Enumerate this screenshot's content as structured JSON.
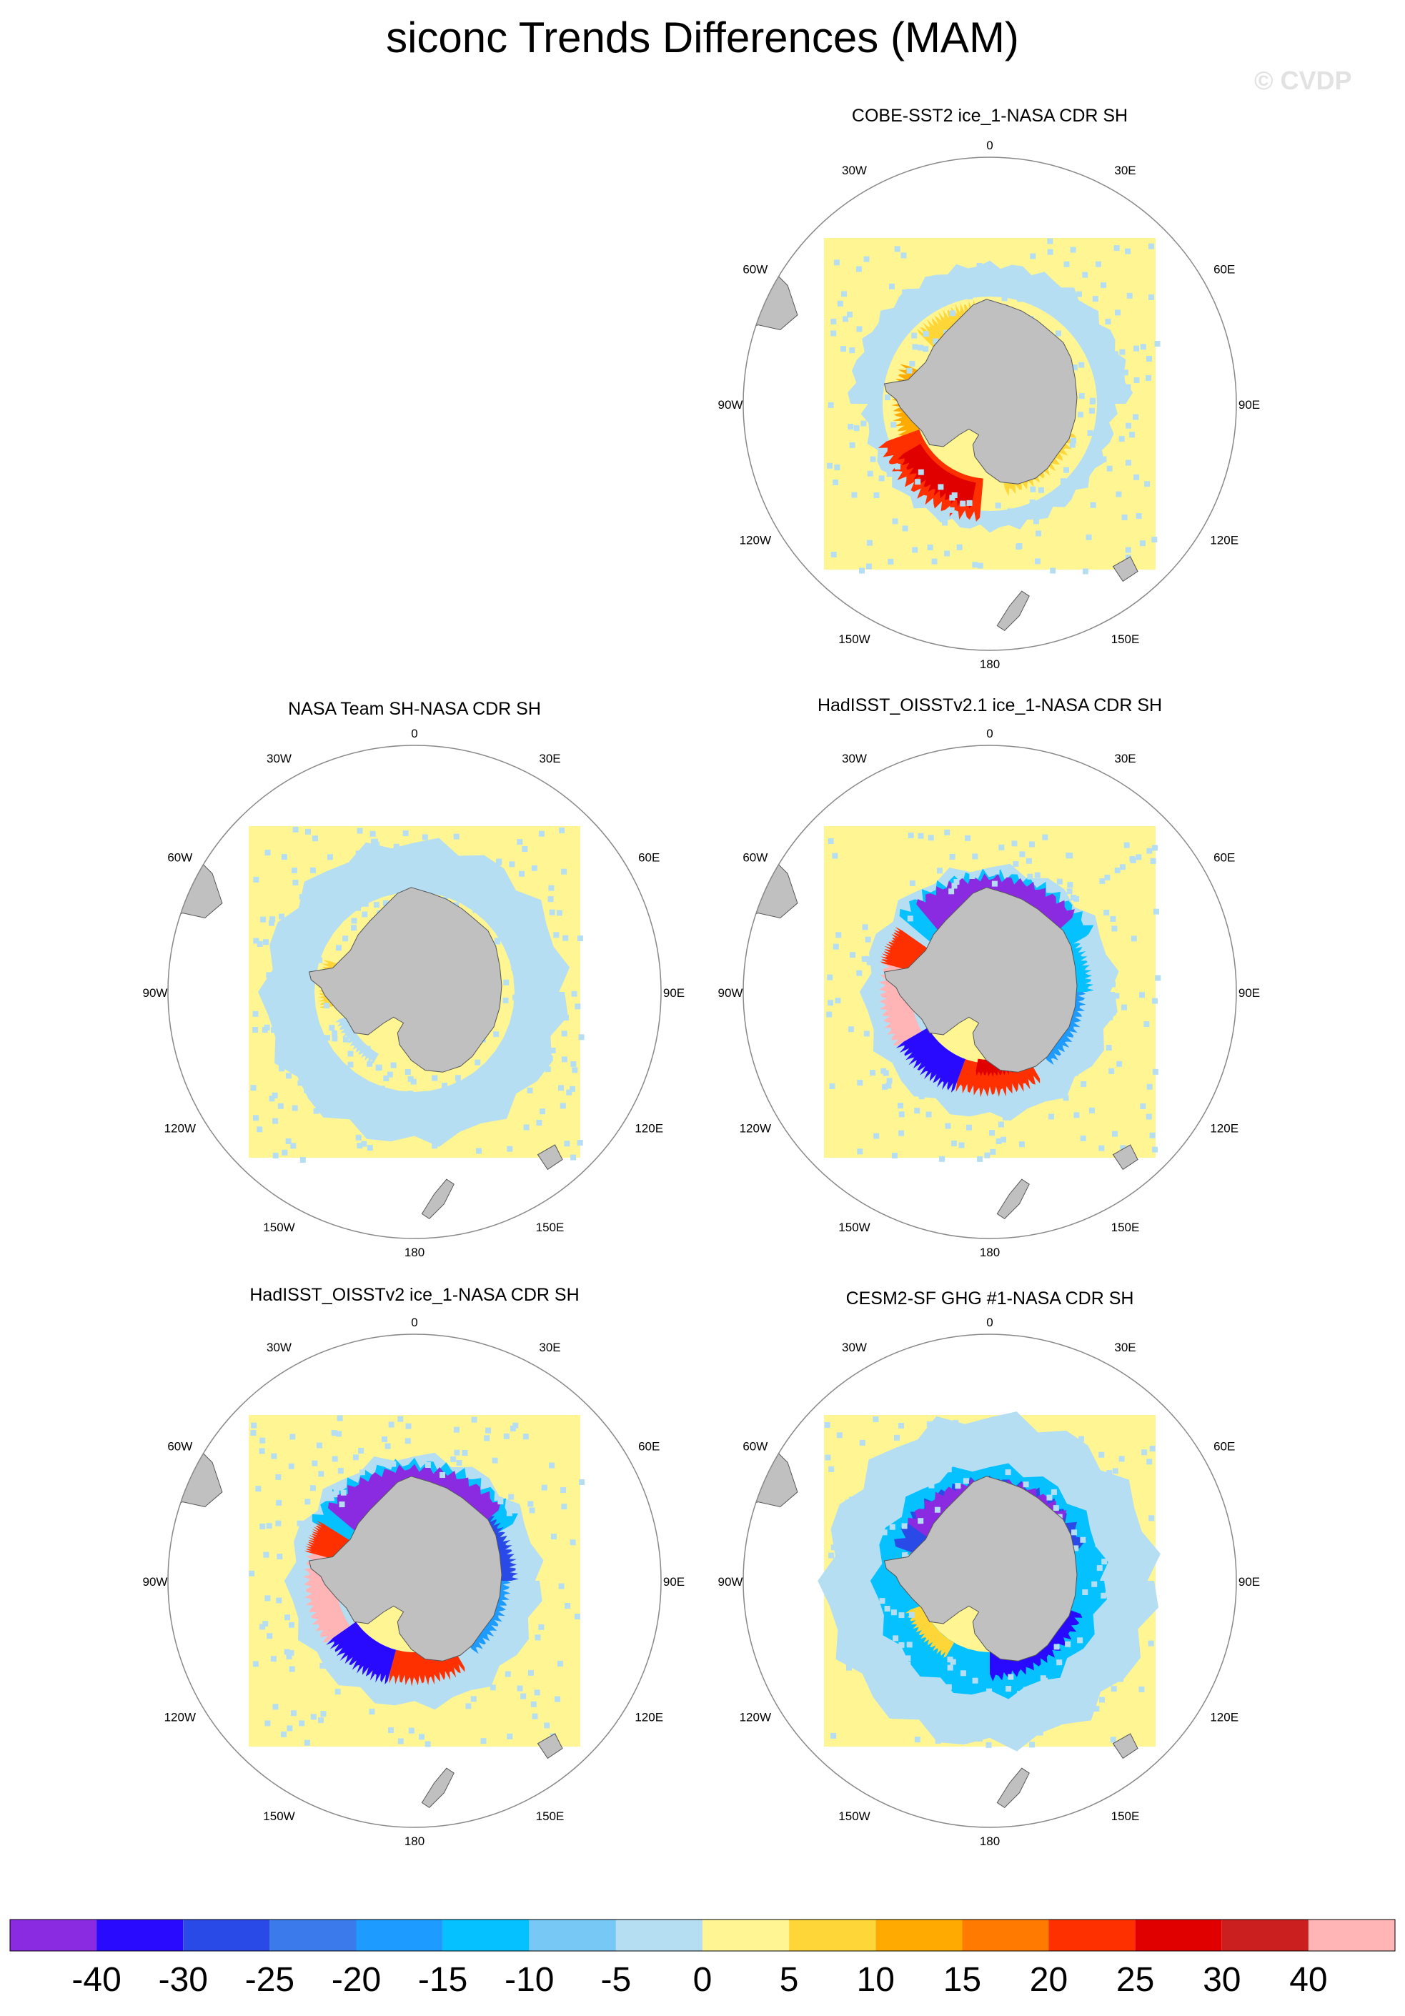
{
  "title": "siconc Trends Differences (MAM)",
  "watermark": "© CVDP",
  "lon_labels": [
    "0",
    "30E",
    "60E",
    "90E",
    "120E",
    "150E",
    "180",
    "150W",
    "120W",
    "90W",
    "60W",
    "30W"
  ],
  "panels": [
    {
      "title": "COBE-SST2 ice_1-NASA CDR SH",
      "pattern": "cobe"
    },
    {
      "title": "NASA Team SH-NASA CDR SH",
      "pattern": "nasateam"
    },
    {
      "title": "HadISST_OISSTv2.1 ice_1-NASA CDR SH",
      "pattern": "hadisst21"
    },
    {
      "title": "HadISST_OISSTv2 ice_1-NASA CDR SH",
      "pattern": "hadisst2"
    },
    {
      "title": "CESM2-SF GHG #1-NASA CDR SH",
      "pattern": "cesm2"
    }
  ],
  "colorbar": {
    "labels": [
      "-40",
      "-30",
      "-25",
      "-20",
      "-15",
      "-10",
      "-5",
      "0",
      "5",
      "10",
      "15",
      "20",
      "25",
      "30",
      "40"
    ],
    "colors": [
      "#8a2be2",
      "#2a0aff",
      "#2a4ae8",
      "#3a7aea",
      "#1e9bff",
      "#05c1ff",
      "#78c8f5",
      "#b5def2",
      "#fff593",
      "#ffd638",
      "#ffaa00",
      "#ff7a00",
      "#ff3000",
      "#e10000",
      "#cb1e1e",
      "#ffb5b5"
    ]
  },
  "colors": {
    "land": "#c0c0c0",
    "ocean_missing": "#ffffff",
    "frame": "#888888"
  }
}
